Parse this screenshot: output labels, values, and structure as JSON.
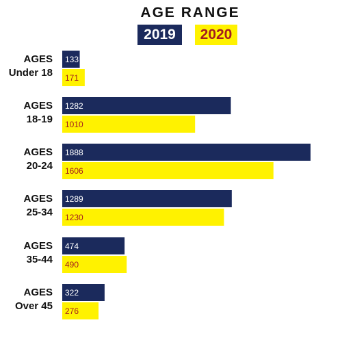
{
  "chart_data": {
    "type": "bar",
    "orientation": "horizontal",
    "title": "AGE RANGE",
    "categories": [
      [
        "AGES",
        "Under 18"
      ],
      [
        "AGES",
        "18-19"
      ],
      [
        "AGES",
        "20-24"
      ],
      [
        "AGES",
        "25-34"
      ],
      [
        "AGES",
        "35-44"
      ],
      [
        "AGES",
        "Over 45"
      ]
    ],
    "series": [
      {
        "name": "2019",
        "values": [
          133,
          1282,
          1888,
          1289,
          474,
          322
        ],
        "color": "#1b2a5c",
        "label_color": "#ffffff"
      },
      {
        "name": "2020",
        "values": [
          171,
          1010,
          1606,
          1230,
          490,
          276
        ],
        "color": "#fff200",
        "label_color": "#a31d1f"
      }
    ],
    "xlim": [
      0,
      1888
    ],
    "legend": "top",
    "grid": false
  }
}
